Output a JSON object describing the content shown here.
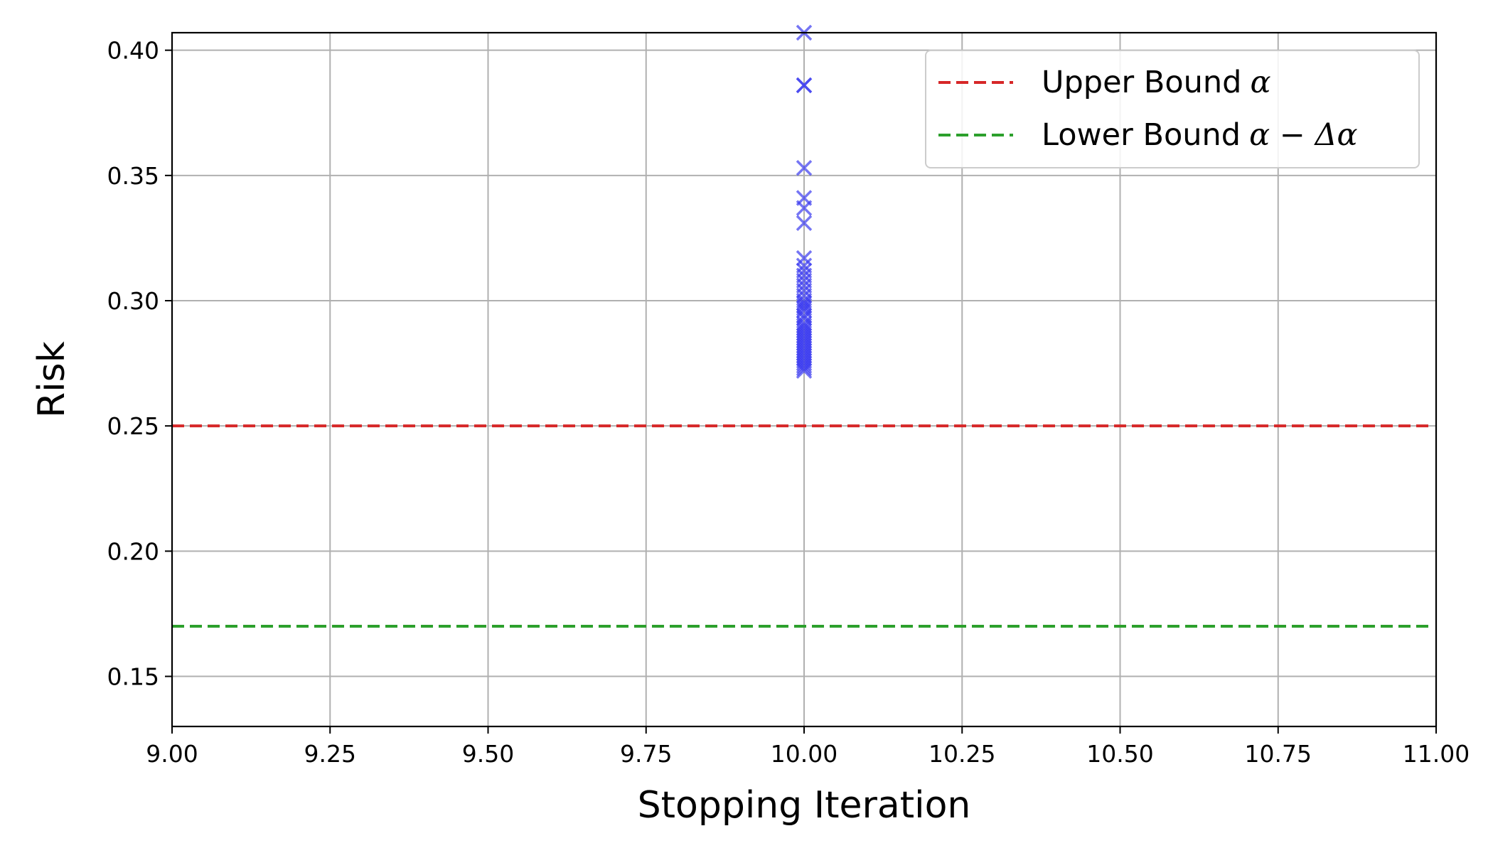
{
  "chart_data": {
    "type": "scatter",
    "xlabel": "Stopping Iteration",
    "ylabel": "Risk",
    "xlim": [
      9.0,
      11.0
    ],
    "ylim": [
      0.13,
      0.407
    ],
    "x_ticks": [
      "9.00",
      "9.25",
      "9.50",
      "9.75",
      "10.00",
      "10.25",
      "10.50",
      "10.75",
      "11.00"
    ],
    "y_ticks": [
      "0.15",
      "0.20",
      "0.25",
      "0.30",
      "0.35",
      "0.40"
    ],
    "grid": true,
    "legend_position": "top-right",
    "series": [
      {
        "kind": "scatter",
        "marker": "x",
        "color": "#3a3af0",
        "x": [
          10,
          10,
          10,
          10,
          10,
          10,
          10,
          10,
          10,
          10,
          10,
          10,
          10,
          10,
          10,
          10,
          10,
          10,
          10,
          10,
          10,
          10,
          10,
          10,
          10,
          10,
          10,
          10,
          10,
          10,
          10,
          10,
          10,
          10,
          10,
          10,
          10,
          10,
          10,
          10,
          10,
          10
        ],
        "y": [
          0.407,
          0.386,
          0.386,
          0.353,
          0.341,
          0.337,
          0.331,
          0.317,
          0.314,
          0.312,
          0.31,
          0.308,
          0.306,
          0.304,
          0.302,
          0.3,
          0.299,
          0.297,
          0.296,
          0.294,
          0.293,
          0.291,
          0.29,
          0.289,
          0.288,
          0.287,
          0.286,
          0.285,
          0.284,
          0.283,
          0.282,
          0.281,
          0.28,
          0.279,
          0.278,
          0.277,
          0.276,
          0.275,
          0.274,
          0.273,
          0.272,
          0.298
        ]
      },
      {
        "kind": "hline",
        "name": "Upper Bound",
        "symbol": "α",
        "color": "#d62728",
        "y": 0.25
      },
      {
        "kind": "hline",
        "name": "Lower Bound",
        "symbol": "α − Δα",
        "color": "#2ca02c",
        "y": 0.17
      }
    ]
  }
}
